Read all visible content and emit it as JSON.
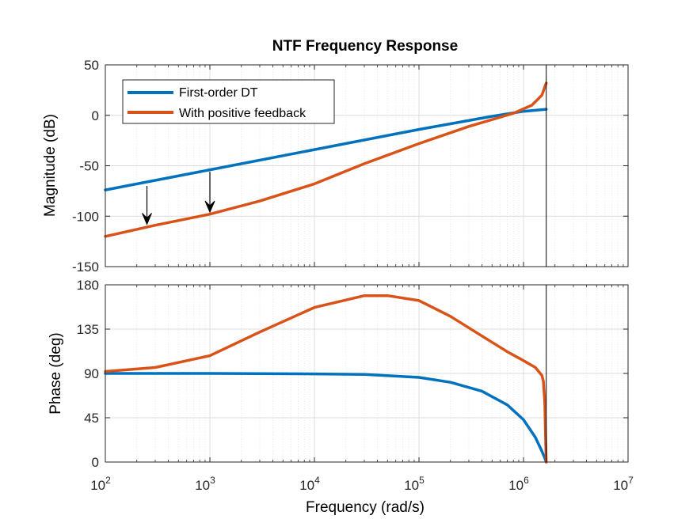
{
  "chart_data": {
    "type": "line",
    "title": "NTF Frequency Response",
    "xlabel": "Frequency  (rad/s)",
    "x_scale": "log",
    "xlim": [
      100,
      10000000
    ],
    "x_tick_labels": [
      {
        "base": "10",
        "exp": "2"
      },
      {
        "base": "10",
        "exp": "3"
      },
      {
        "base": "10",
        "exp": "4"
      },
      {
        "base": "10",
        "exp": "5"
      },
      {
        "base": "10",
        "exp": "6"
      },
      {
        "base": "10",
        "exp": "7"
      }
    ],
    "grid": true,
    "nyquist_marker": 1650000,
    "legend": {
      "placement": "top-left",
      "entries": [
        "First-order DT",
        "With positive feedback"
      ]
    },
    "colors": {
      "first_order": "#0072BD",
      "positive_feedback": "#D95319"
    },
    "subplots": [
      {
        "name": "magnitude",
        "ylabel": "Magnitude (dB)",
        "ylim": [
          -150,
          50
        ],
        "yticks": [
          50,
          0,
          -50,
          -100,
          -150
        ],
        "series": [
          {
            "name": "First-order DT",
            "x": [
              100,
              1000,
              10000,
              100000,
              500000,
              1000000,
              1650000
            ],
            "y": [
              -74,
              -54,
              -34,
              -14,
              -1,
              4,
              6
            ]
          },
          {
            "name": "With positive feedback",
            "x": [
              100,
              300,
              1000,
              3000,
              10000,
              30000,
              100000,
              300000,
              800000,
              1200000,
              1500000,
              1650000
            ],
            "y": [
              -120,
              -109,
              -98,
              -85,
              -68,
              -48,
              -28,
              -11,
              2,
              10,
              20,
              32
            ]
          }
        ],
        "annotations": [
          {
            "type": "arrow",
            "x": 250,
            "y_from": -70,
            "y_to": -108
          },
          {
            "type": "arrow",
            "x": 1000,
            "y_from": -56,
            "y_to": -96
          }
        ]
      },
      {
        "name": "phase",
        "ylabel": "Phase (deg)",
        "ylim": [
          0,
          180
        ],
        "yticks": [
          180,
          135,
          90,
          45,
          0
        ],
        "series": [
          {
            "name": "First-order DT",
            "x": [
              100,
              1000,
              10000,
              30000,
              100000,
              200000,
              400000,
              700000,
              1000000,
              1300000,
              1500000,
              1600000,
              1650000
            ],
            "y": [
              90,
              90,
              89.5,
              89,
              86,
              81,
              72,
              58,
              43,
              25,
              11,
              4,
              0
            ]
          },
          {
            "name": "With positive feedback",
            "x": [
              100,
              300,
              1000,
              3000,
              10000,
              30000,
              50000,
              100000,
              200000,
              400000,
              700000,
              1000000,
              1300000,
              1500000,
              1550000,
              1600000,
              1620000,
              1650000
            ],
            "y": [
              92,
              96,
              108,
              132,
              157,
              169,
              169,
              164,
              148,
              128,
              112,
              103,
              96,
              88,
              82,
              60,
              30,
              0
            ]
          }
        ]
      }
    ]
  }
}
